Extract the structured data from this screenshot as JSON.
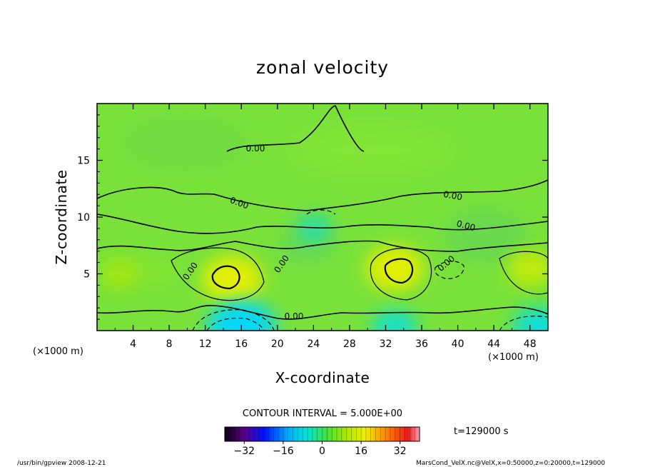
{
  "chart_data": {
    "type": "heatmap",
    "title": "zonal velocity",
    "xlabel": "X-coordinate",
    "ylabel": "Z-coordinate",
    "x_unit_left": "(×1000 m)",
    "x_unit_right": "(×1000 m)",
    "xlim": [
      0,
      50
    ],
    "ylim": [
      0,
      20
    ],
    "x_ticks": [
      4,
      8,
      12,
      16,
      20,
      24,
      28,
      32,
      36,
      40,
      44,
      48
    ],
    "y_ticks": [
      5,
      10,
      15
    ],
    "contour_interval_text": "CONTOUR INTERVAL = 5.000E+00",
    "contour_labels": [
      "0.00",
      "0.00",
      "0.00",
      "0.00",
      "0.00",
      "0.00",
      "0.00",
      "0.00",
      "0.00"
    ],
    "colorbar": {
      "min": -40,
      "max": 40,
      "ticks": [
        -32,
        -16,
        0,
        16,
        32
      ]
    },
    "time_text": "t=129000 s",
    "features": [
      {
        "x": 15,
        "z": 4.5,
        "value": 12,
        "kind": "positive max"
      },
      {
        "x": 33,
        "z": 5.5,
        "value": 11,
        "kind": "positive max"
      },
      {
        "x": 48,
        "z": 5.5,
        "value": 7,
        "kind": "positive max"
      },
      {
        "x": 2.5,
        "z": 5,
        "value": 4,
        "kind": "positive max"
      },
      {
        "x": 16,
        "z": 0.3,
        "value": -15,
        "kind": "negative min"
      },
      {
        "x": 33,
        "z": 0.3,
        "value": -7,
        "kind": "negative min"
      },
      {
        "x": 49,
        "z": 0.3,
        "value": -10,
        "kind": "negative min"
      },
      {
        "x": 24,
        "z": 9,
        "value": -5,
        "kind": "negative min"
      }
    ]
  },
  "footer": {
    "left": "/usr/bin/gpview   2008-12-21",
    "right": "MarsCond_VelX.nc@VelX,x=0:50000,z=0:20000,t=129000"
  },
  "colors": {
    "background": "#ffffff",
    "field_base": "#79e23a"
  }
}
